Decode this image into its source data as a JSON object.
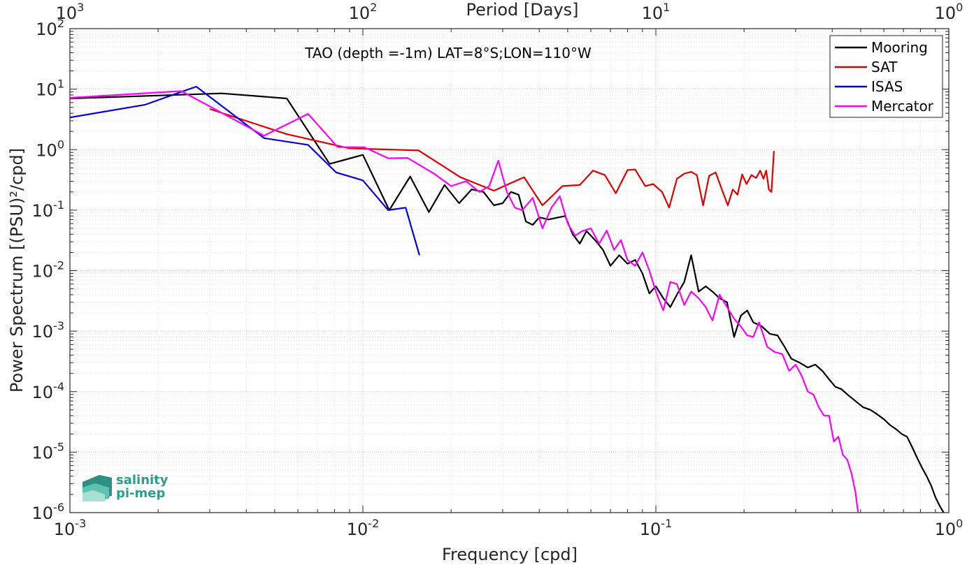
{
  "chart_data": {
    "type": "line",
    "title": "TAO (depth =-1m) LAT=8°S;LON=110°W",
    "xlabel": "Frequency [cpd]",
    "ylabel": "Power Spectrum [(PSU)²/cpd]",
    "top_xlabel": "Period [Days]",
    "xscale": "log",
    "yscale": "log",
    "xlim": [
      0.001,
      1
    ],
    "ylim": [
      1e-06,
      100
    ],
    "grid": true,
    "legend_position": "top-right",
    "x_ticks": [
      {
        "value": 0.001,
        "base": "10",
        "exp": "-3"
      },
      {
        "value": 0.01,
        "base": "10",
        "exp": "-2"
      },
      {
        "value": 0.1,
        "base": "10",
        "exp": "-1"
      },
      {
        "value": 1,
        "base": "10",
        "exp": "0"
      }
    ],
    "top_x_ticks": [
      {
        "value": 0.001,
        "base": "10",
        "exp": "3"
      },
      {
        "value": 0.01,
        "base": "10",
        "exp": "2"
      },
      {
        "value": 0.1,
        "base": "10",
        "exp": "1"
      },
      {
        "value": 1,
        "base": "10",
        "exp": "0"
      }
    ],
    "y_ticks": [
      {
        "value": 100,
        "base": "10",
        "exp": "2"
      },
      {
        "value": 10,
        "base": "10",
        "exp": "1"
      },
      {
        "value": 1,
        "base": "10",
        "exp": "0"
      },
      {
        "value": 0.1,
        "base": "10",
        "exp": "-1"
      },
      {
        "value": 0.01,
        "base": "10",
        "exp": "-2"
      },
      {
        "value": 0.001,
        "base": "10",
        "exp": "-3"
      },
      {
        "value": 0.0001,
        "base": "10",
        "exp": "-4"
      },
      {
        "value": 1e-05,
        "base": "10",
        "exp": "-5"
      },
      {
        "value": 1e-06,
        "base": "10",
        "exp": "-6"
      }
    ],
    "series": [
      {
        "name": "Mooring",
        "color": "#000000",
        "points": [
          [
            0.001,
            7.0
          ],
          [
            0.0033,
            8.5
          ],
          [
            0.0055,
            7.0
          ],
          [
            0.0077,
            0.58
          ],
          [
            0.01,
            0.82
          ],
          [
            0.0123,
            0.1
          ],
          [
            0.0145,
            0.36
          ],
          [
            0.0168,
            0.093
          ],
          [
            0.019,
            0.26
          ],
          [
            0.0213,
            0.13
          ],
          [
            0.0235,
            0.22
          ],
          [
            0.0258,
            0.2
          ],
          [
            0.028,
            0.12
          ],
          [
            0.03,
            0.13
          ],
          [
            0.032,
            0.2
          ],
          [
            0.034,
            0.18
          ],
          [
            0.036,
            0.065
          ],
          [
            0.038,
            0.057
          ],
          [
            0.04,
            0.076
          ],
          [
            0.043,
            0.07
          ],
          [
            0.046,
            0.075
          ],
          [
            0.049,
            0.08
          ],
          [
            0.052,
            0.04
          ],
          [
            0.055,
            0.028
          ],
          [
            0.058,
            0.045
          ],
          [
            0.062,
            0.032
          ],
          [
            0.066,
            0.022
          ],
          [
            0.07,
            0.012
          ],
          [
            0.075,
            0.018
          ],
          [
            0.08,
            0.013
          ],
          [
            0.085,
            0.015
          ],
          [
            0.09,
            0.009
          ],
          [
            0.095,
            0.0042
          ],
          [
            0.1,
            0.0055
          ],
          [
            0.106,
            0.0035
          ],
          [
            0.112,
            0.0025
          ],
          [
            0.118,
            0.004
          ],
          [
            0.125,
            0.0065
          ],
          [
            0.132,
            0.018
          ],
          [
            0.14,
            0.0045
          ],
          [
            0.148,
            0.0055
          ],
          [
            0.156,
            0.0045
          ],
          [
            0.165,
            0.0035
          ],
          [
            0.175,
            0.003
          ],
          [
            0.185,
            0.0008
          ],
          [
            0.195,
            0.0018
          ],
          [
            0.205,
            0.0022
          ],
          [
            0.215,
            0.0014
          ],
          [
            0.23,
            0.0012
          ],
          [
            0.245,
            0.0009
          ],
          [
            0.26,
            0.00085
          ],
          [
            0.275,
            0.00055
          ],
          [
            0.29,
            0.00035
          ],
          [
            0.31,
            0.0003
          ],
          [
            0.33,
            0.00025
          ],
          [
            0.35,
            0.00028
          ],
          [
            0.37,
            0.00022
          ],
          [
            0.39,
            0.00016
          ],
          [
            0.41,
            0.00012
          ],
          [
            0.43,
            0.00011
          ],
          [
            0.45,
            9e-05
          ],
          [
            0.48,
            7e-05
          ],
          [
            0.51,
            5.5e-05
          ],
          [
            0.54,
            5e-05
          ],
          [
            0.57,
            4.2e-05
          ],
          [
            0.6,
            3.5e-05
          ],
          [
            0.63,
            2.8e-05
          ],
          [
            0.66,
            2.4e-05
          ],
          [
            0.69,
            2e-05
          ],
          [
            0.72,
            1.8e-05
          ],
          [
            0.75,
            1.2e-05
          ],
          [
            0.78,
            8e-06
          ],
          [
            0.81,
            5.5e-06
          ],
          [
            0.84,
            4e-06
          ],
          [
            0.87,
            2.8e-06
          ],
          [
            0.9,
            1.8e-06
          ],
          [
            0.93,
            1.3e-06
          ],
          [
            0.96,
            1e-06
          ]
        ]
      },
      {
        "name": "SAT",
        "color": "#e00000",
        "points": [
          [
            0.003,
            4.7
          ],
          [
            0.0055,
            1.8
          ],
          [
            0.009,
            1.05
          ],
          [
            0.0155,
            0.97
          ],
          [
            0.0215,
            0.35
          ],
          [
            0.028,
            0.21
          ],
          [
            0.0355,
            0.35
          ],
          [
            0.041,
            0.12
          ],
          [
            0.048,
            0.25
          ],
          [
            0.055,
            0.26
          ],
          [
            0.061,
            0.45
          ],
          [
            0.067,
            0.38
          ],
          [
            0.073,
            0.19
          ],
          [
            0.08,
            0.46
          ],
          [
            0.085,
            0.47
          ],
          [
            0.092,
            0.25
          ],
          [
            0.098,
            0.27
          ],
          [
            0.105,
            0.2
          ],
          [
            0.111,
            0.11
          ],
          [
            0.118,
            0.33
          ],
          [
            0.125,
            0.4
          ],
          [
            0.132,
            0.43
          ],
          [
            0.138,
            0.38
          ],
          [
            0.145,
            0.12
          ],
          [
            0.152,
            0.37
          ],
          [
            0.16,
            0.42
          ],
          [
            0.168,
            0.22
          ],
          [
            0.176,
            0.12
          ],
          [
            0.183,
            0.22
          ],
          [
            0.19,
            0.18
          ],
          [
            0.197,
            0.39
          ],
          [
            0.204,
            0.27
          ],
          [
            0.212,
            0.38
          ],
          [
            0.22,
            0.34
          ],
          [
            0.227,
            0.45
          ],
          [
            0.233,
            0.33
          ],
          [
            0.238,
            0.45
          ],
          [
            0.243,
            0.22
          ],
          [
            0.248,
            0.2
          ],
          [
            0.253,
            0.95
          ]
        ]
      },
      {
        "name": "ISAS",
        "color": "#0000e0",
        "points": [
          [
            0.001,
            3.4
          ],
          [
            0.0018,
            5.5
          ],
          [
            0.0027,
            11.0
          ],
          [
            0.0046,
            1.55
          ],
          [
            0.0065,
            1.2
          ],
          [
            0.0081,
            0.42
          ],
          [
            0.01,
            0.31
          ],
          [
            0.0122,
            0.1
          ],
          [
            0.014,
            0.11
          ],
          [
            0.0156,
            0.018
          ]
        ]
      },
      {
        "name": "Mercator",
        "color": "#ff00ff",
        "points": [
          [
            0.001,
            7.2
          ],
          [
            0.0024,
            9.3
          ],
          [
            0.0046,
            1.7
          ],
          [
            0.0065,
            3.9
          ],
          [
            0.0082,
            1.1
          ],
          [
            0.0101,
            1.1
          ],
          [
            0.0122,
            0.72
          ],
          [
            0.0142,
            0.73
          ],
          [
            0.0175,
            0.4
          ],
          [
            0.02,
            0.25
          ],
          [
            0.0225,
            0.3
          ],
          [
            0.025,
            0.2
          ],
          [
            0.027,
            0.25
          ],
          [
            0.029,
            0.66
          ],
          [
            0.031,
            0.2
          ],
          [
            0.033,
            0.11
          ],
          [
            0.035,
            0.1
          ],
          [
            0.038,
            0.16
          ],
          [
            0.041,
            0.05
          ],
          [
            0.044,
            0.11
          ],
          [
            0.047,
            0.17
          ],
          [
            0.05,
            0.06
          ],
          [
            0.053,
            0.038
          ],
          [
            0.056,
            0.045
          ],
          [
            0.06,
            0.05
          ],
          [
            0.064,
            0.028
          ],
          [
            0.068,
            0.046
          ],
          [
            0.072,
            0.022
          ],
          [
            0.076,
            0.032
          ],
          [
            0.08,
            0.015
          ],
          [
            0.085,
            0.012
          ],
          [
            0.09,
            0.02
          ],
          [
            0.095,
            0.01
          ],
          [
            0.1,
            0.0045
          ],
          [
            0.106,
            0.0022
          ],
          [
            0.112,
            0.0065
          ],
          [
            0.118,
            0.006
          ],
          [
            0.125,
            0.0027
          ],
          [
            0.132,
            0.0045
          ],
          [
            0.14,
            0.0035
          ],
          [
            0.148,
            0.0025
          ],
          [
            0.156,
            0.0015
          ],
          [
            0.165,
            0.004
          ],
          [
            0.175,
            0.0025
          ],
          [
            0.185,
            0.0016
          ],
          [
            0.195,
            0.0012
          ],
          [
            0.205,
            0.00085
          ],
          [
            0.215,
            0.0008
          ],
          [
            0.225,
            0.0014
          ],
          [
            0.24,
            0.00055
          ],
          [
            0.255,
            0.00045
          ],
          [
            0.27,
            0.00042
          ],
          [
            0.285,
            0.00022
          ],
          [
            0.3,
            0.00028
          ],
          [
            0.315,
            0.00018
          ],
          [
            0.33,
            0.0001
          ],
          [
            0.345,
            9e-05
          ],
          [
            0.36,
            5.5e-05
          ],
          [
            0.375,
            4e-05
          ],
          [
            0.39,
            4e-05
          ],
          [
            0.405,
            1.5e-05
          ],
          [
            0.42,
            1.8e-05
          ],
          [
            0.435,
            9e-06
          ],
          [
            0.45,
            7.5e-06
          ],
          [
            0.465,
            4.5e-06
          ],
          [
            0.48,
            2.2e-06
          ],
          [
            0.49,
            1e-06
          ]
        ]
      }
    ]
  },
  "logo": {
    "line1": "salinity",
    "line2": "pi-mep"
  }
}
